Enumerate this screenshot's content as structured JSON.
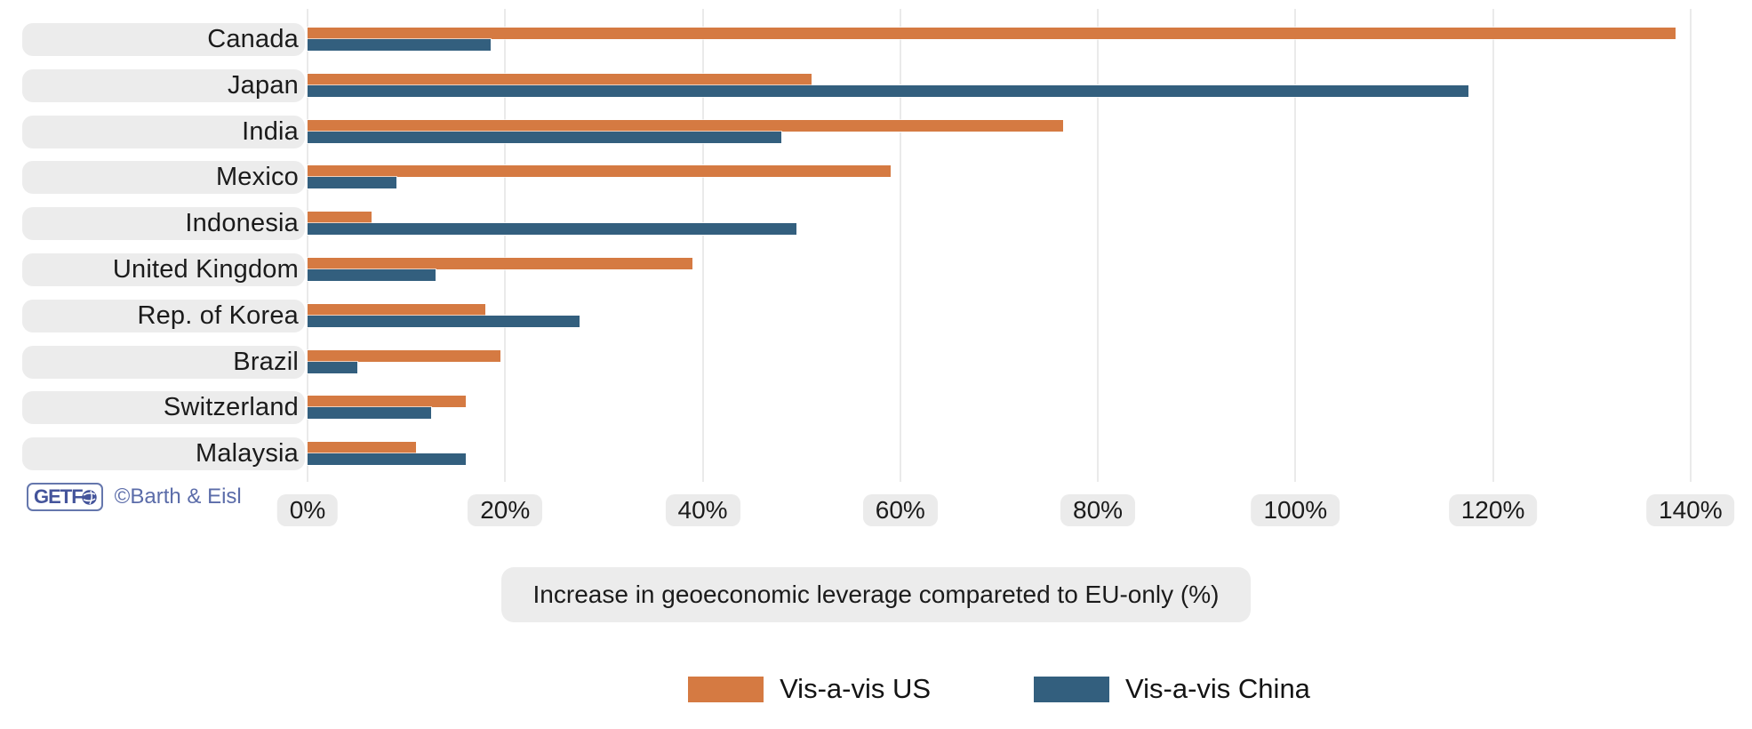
{
  "chart_data": {
    "type": "bar",
    "orientation": "horizontal",
    "title": "",
    "xlabel": "Increase in geoeconomic leverage compareted to EU-only (%)",
    "ylabel": "",
    "xlim": [
      0,
      140
    ],
    "grid": true,
    "legend_position": "bottom-center",
    "x_ticks": [
      "0%",
      "20%",
      "40%",
      "60%",
      "80%",
      "100%",
      "120%",
      "140%"
    ],
    "x_tick_values": [
      0,
      20,
      40,
      60,
      80,
      100,
      120,
      140
    ],
    "categories": [
      "Canada",
      "Japan",
      "India",
      "Mexico",
      "Indonesia",
      "United Kingdom",
      "Rep. of Korea",
      "Brazil",
      "Switzerland",
      "Malaysia"
    ],
    "series": [
      {
        "name": "Vis-a-vis US",
        "color": "#d57a42",
        "values": [
          138.5,
          51.0,
          76.5,
          59.0,
          6.5,
          39.0,
          18.0,
          19.5,
          16.0,
          11.0
        ]
      },
      {
        "name": "Vis-a-vis China",
        "color": "#335f7e",
        "values": [
          18.5,
          117.5,
          48.0,
          9.0,
          49.5,
          13.0,
          27.5,
          5.0,
          12.5,
          16.0
        ]
      }
    ]
  },
  "footer": {
    "logo_text": "GETF",
    "globe_icon": "globe-icon",
    "credit": "©Barth & Eisl"
  },
  "colors": {
    "bar_us": "#d57a42",
    "bar_china": "#335f7e",
    "label_pill_bg": "#ececec",
    "tick_pill_bg": "#ebebeb",
    "gridline": "#eaeaea",
    "text": "#1b1b1b",
    "brand_blue": "#5b6ca9"
  }
}
